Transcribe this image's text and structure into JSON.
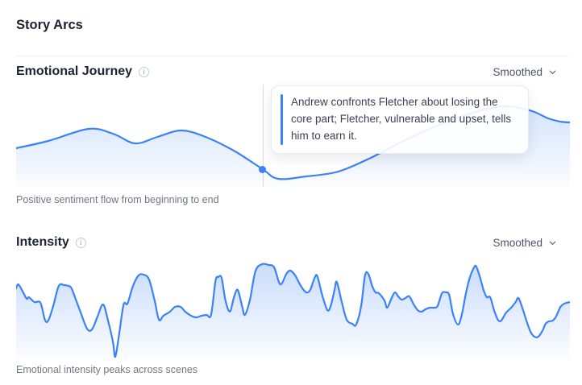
{
  "header": {
    "title": "Story Arcs"
  },
  "icons": {
    "info_glyph": "i",
    "chevron": "chevron-down"
  },
  "colors": {
    "accent_blue": "#3b82f6",
    "heading": "#1c2433",
    "caption_gray": "#707683",
    "crosshair_gray": "#d4d9df",
    "divider": "#edeff2"
  },
  "sections": [
    {
      "title": "Emotional Journey",
      "mode_label": "Smoothed",
      "caption": "Positive sentiment flow from beginning to end"
    },
    {
      "title": "Intensity",
      "mode_label": "Smoothed",
      "caption": "Emotional intensity peaks across scenes"
    }
  ],
  "chart_data": [
    {
      "type": "area",
      "title": "Emotional Journey",
      "subtitle": "Positive sentiment flow from beginning to end",
      "smoothing_mode": "Smoothed",
      "xlabel": "",
      "ylabel": "",
      "x_range_pct": [
        0,
        100
      ],
      "ylim_pct": [
        0,
        100
      ],
      "grid": false,
      "legend": "none",
      "line_color": "#3b82f6",
      "points": [
        [
          0,
          37.8
        ],
        [
          5.8,
          44.9
        ],
        [
          13.1,
          56.7
        ],
        [
          17.5,
          52.0
        ],
        [
          21.5,
          42.5
        ],
        [
          25.5,
          48.8
        ],
        [
          29.8,
          55.1
        ],
        [
          34.2,
          48.8
        ],
        [
          39.3,
          35.4
        ],
        [
          44.5,
          17.3
        ],
        [
          47.3,
          7.9
        ],
        [
          52.4,
          10.2
        ],
        [
          58.2,
          15.0
        ],
        [
          64.0,
          28.3
        ],
        [
          69.9,
          44.9
        ],
        [
          75.7,
          59.1
        ],
        [
          81.5,
          70.9
        ],
        [
          85.9,
          77.2
        ],
        [
          89.2,
          78.7
        ],
        [
          93.2,
          74.0
        ],
        [
          96.1,
          66.9
        ],
        [
          98.3,
          63.8
        ],
        [
          100,
          63.0
        ]
      ],
      "marker": {
        "x": 44.5,
        "value": 17.3,
        "annotation": "Andrew confronts Fletcher about losing the core part; Fletcher, vulnerable and upset, tells him to earn it."
      }
    },
    {
      "type": "area",
      "title": "Intensity",
      "subtitle": "Emotional intensity peaks across scenes",
      "smoothing_mode": "Smoothed",
      "xlabel": "",
      "ylabel": "",
      "x_range_pct": [
        0,
        100
      ],
      "ylim_pct": [
        0,
        100
      ],
      "grid": false,
      "legend": "none",
      "line_color": "#3b82f6",
      "points": [
        [
          0,
          72.5
        ],
        [
          0.4,
          76.7
        ],
        [
          1.2,
          69.2
        ],
        [
          1.9,
          61.7
        ],
        [
          2.3,
          63.3
        ],
        [
          3.3,
          58.3
        ],
        [
          4.4,
          57.5
        ],
        [
          5.2,
          40
        ],
        [
          5.8,
          39.2
        ],
        [
          6.7,
          54.2
        ],
        [
          7.7,
          75
        ],
        [
          8.7,
          75.8
        ],
        [
          9.8,
          74.2
        ],
        [
          10.3,
          68.3
        ],
        [
          11.6,
          48.3
        ],
        [
          12.8,
          30.8
        ],
        [
          13.7,
          30
        ],
        [
          14.7,
          43.3
        ],
        [
          15.7,
          55.8
        ],
        [
          16.6,
          39.2
        ],
        [
          17.5,
          16.7
        ],
        [
          17.9,
          1.7
        ],
        [
          18.6,
          25
        ],
        [
          19.4,
          55.8
        ],
        [
          20.1,
          56.7
        ],
        [
          21.1,
          75
        ],
        [
          22.1,
          85.8
        ],
        [
          23,
          86.7
        ],
        [
          24,
          81.7
        ],
        [
          25,
          60
        ],
        [
          25.8,
          40
        ],
        [
          26.6,
          44.2
        ],
        [
          27.7,
          48
        ],
        [
          28.7,
          53.3
        ],
        [
          29.7,
          53.3
        ],
        [
          30.6,
          48
        ],
        [
          31.6,
          44.2
        ],
        [
          32.5,
          42.5
        ],
        [
          33.5,
          44.2
        ],
        [
          34.4,
          45
        ],
        [
          35.2,
          45
        ],
        [
          36,
          80
        ],
        [
          36.5,
          84.2
        ],
        [
          37.1,
          83.3
        ],
        [
          37.8,
          60
        ],
        [
          38.6,
          48.5
        ],
        [
          39.3,
          62.5
        ],
        [
          40,
          71
        ],
        [
          40.8,
          54.2
        ],
        [
          41.3,
          45
        ],
        [
          42.2,
          60
        ],
        [
          43.2,
          90
        ],
        [
          44.4,
          97.5
        ],
        [
          45.6,
          96.7
        ],
        [
          46.6,
          94.2
        ],
        [
          47.7,
          76.7
        ],
        [
          48.8,
          87.5
        ],
        [
          49.5,
          90.8
        ],
        [
          50.4,
          85.8
        ],
        [
          51.5,
          74.2
        ],
        [
          52.4,
          68.3
        ],
        [
          53.1,
          70.8
        ],
        [
          53.9,
          83.3
        ],
        [
          54.4,
          85
        ],
        [
          55.3,
          65
        ],
        [
          56.2,
          50
        ],
        [
          56.8,
          54.2
        ],
        [
          57.5,
          70.8
        ],
        [
          57.9,
          79.2
        ],
        [
          58.8,
          58.3
        ],
        [
          59.7,
          40
        ],
        [
          60.7,
          35.8
        ],
        [
          61.4,
          35
        ],
        [
          62.3,
          54.2
        ],
        [
          63,
          85.8
        ],
        [
          63.6,
          87.5
        ],
        [
          64.3,
          75
        ],
        [
          64.9,
          68.3
        ],
        [
          65.5,
          67.5
        ],
        [
          66.5,
          60
        ],
        [
          67,
          52.5
        ],
        [
          67.8,
          62.5
        ],
        [
          68.4,
          68.3
        ],
        [
          69,
          64.2
        ],
        [
          69.6,
          60.8
        ],
        [
          70.3,
          62.5
        ],
        [
          71,
          64.2
        ],
        [
          71.8,
          55.8
        ],
        [
          72.5,
          50
        ],
        [
          73.2,
          48.3
        ],
        [
          73.9,
          50.8
        ],
        [
          74.7,
          52.5
        ],
        [
          75.4,
          52.5
        ],
        [
          76.1,
          54.2
        ],
        [
          76.9,
          67.5
        ],
        [
          77.6,
          68.3
        ],
        [
          78.2,
          65.8
        ],
        [
          78.9,
          45.8
        ],
        [
          79.8,
          35
        ],
        [
          80.5,
          45.8
        ],
        [
          81.2,
          66.7
        ],
        [
          81.9,
          83.3
        ],
        [
          82.7,
          94.2
        ],
        [
          83.1,
          95
        ],
        [
          83.8,
          83.3
        ],
        [
          84.4,
          70.8
        ],
        [
          85,
          63.3
        ],
        [
          85.6,
          63.3
        ],
        [
          86.3,
          50
        ],
        [
          87,
          40
        ],
        [
          87.6,
          39.2
        ],
        [
          88.5,
          47.5
        ],
        [
          89.4,
          52.5
        ],
        [
          90.2,
          58.3
        ],
        [
          90.7,
          62.5
        ],
        [
          91.4,
          52.5
        ],
        [
          92.1,
          40
        ],
        [
          92.9,
          27.5
        ],
        [
          93.6,
          22.5
        ],
        [
          94.3,
          22.5
        ],
        [
          95.1,
          29.2
        ],
        [
          95.6,
          35.8
        ],
        [
          96.2,
          38.3
        ],
        [
          96.9,
          39.2
        ],
        [
          97.5,
          43.3
        ],
        [
          98.3,
          53.3
        ],
        [
          99,
          56.7
        ],
        [
          100,
          58.3
        ]
      ],
      "marker": null
    }
  ]
}
